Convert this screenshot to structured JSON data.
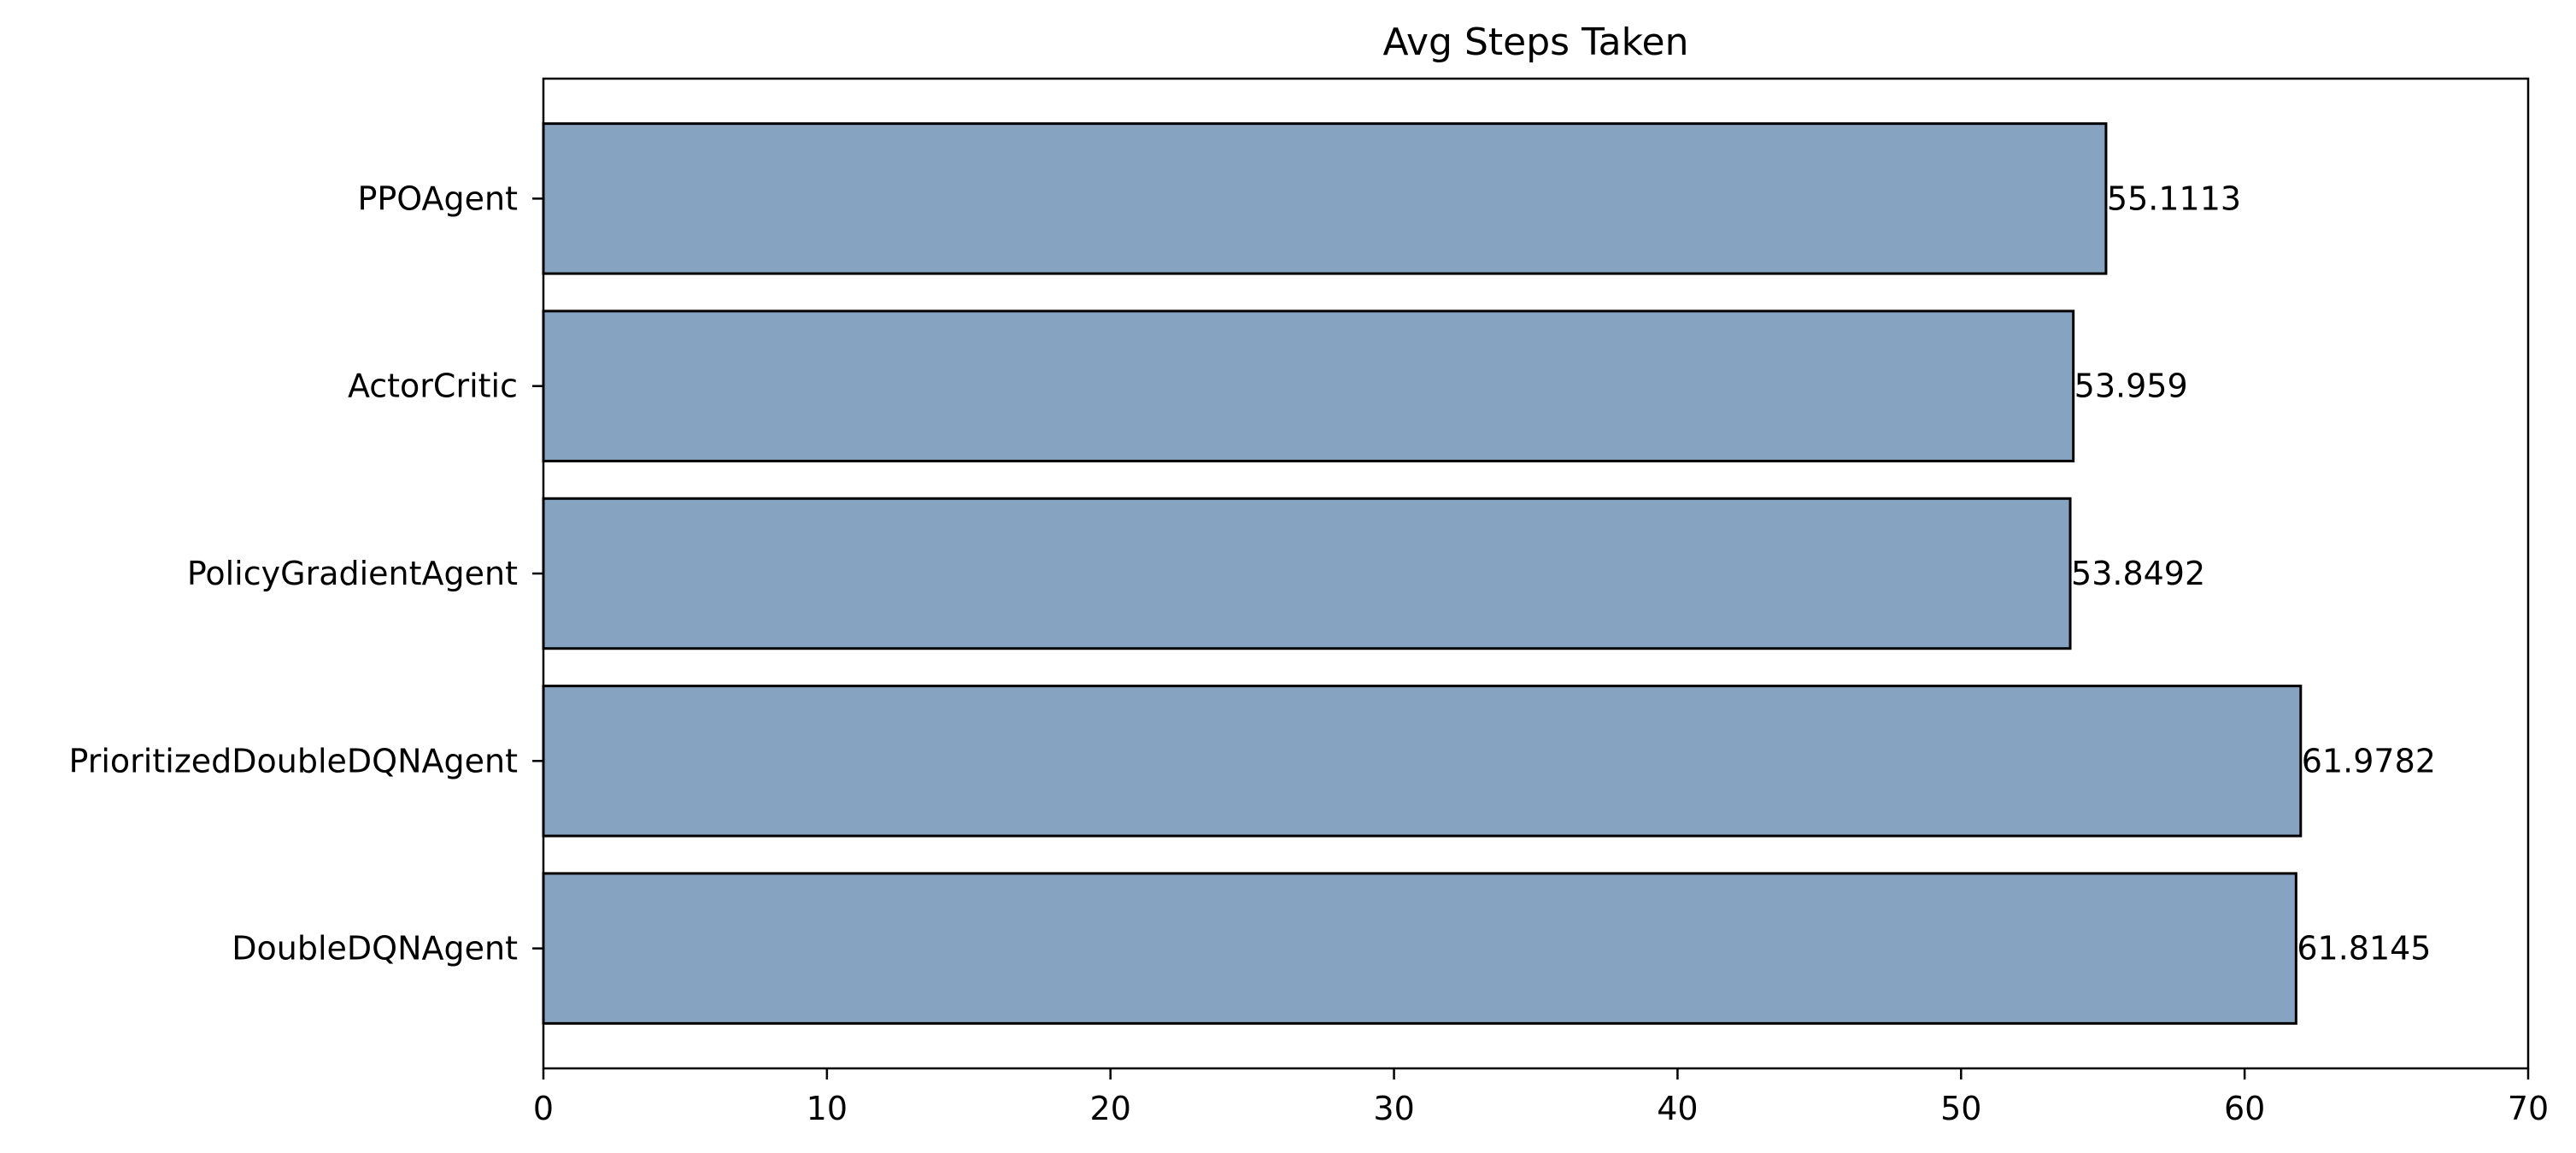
{
  "chart_data": {
    "type": "bar",
    "orientation": "horizontal",
    "title": "Avg Steps Taken",
    "xlabel": "",
    "ylabel": "",
    "categories": [
      "PPOAgent",
      "ActorCritic",
      "PolicyGradientAgent",
      "PrioritizedDoubleDQNAgent",
      "DoubleDQNAgent"
    ],
    "values": [
      55.1113,
      53.959,
      53.8492,
      61.9782,
      61.8145
    ],
    "data_labels": [
      "55.1113",
      "53.959",
      "53.8492",
      "61.9782",
      "61.8145"
    ],
    "xlim": [
      0,
      70
    ],
    "x_ticks": [
      0,
      10,
      20,
      30,
      40,
      50,
      60,
      70
    ],
    "grid": false,
    "legend": "none",
    "bar_color": "#86a4c1",
    "edge_color": "#000000"
  }
}
